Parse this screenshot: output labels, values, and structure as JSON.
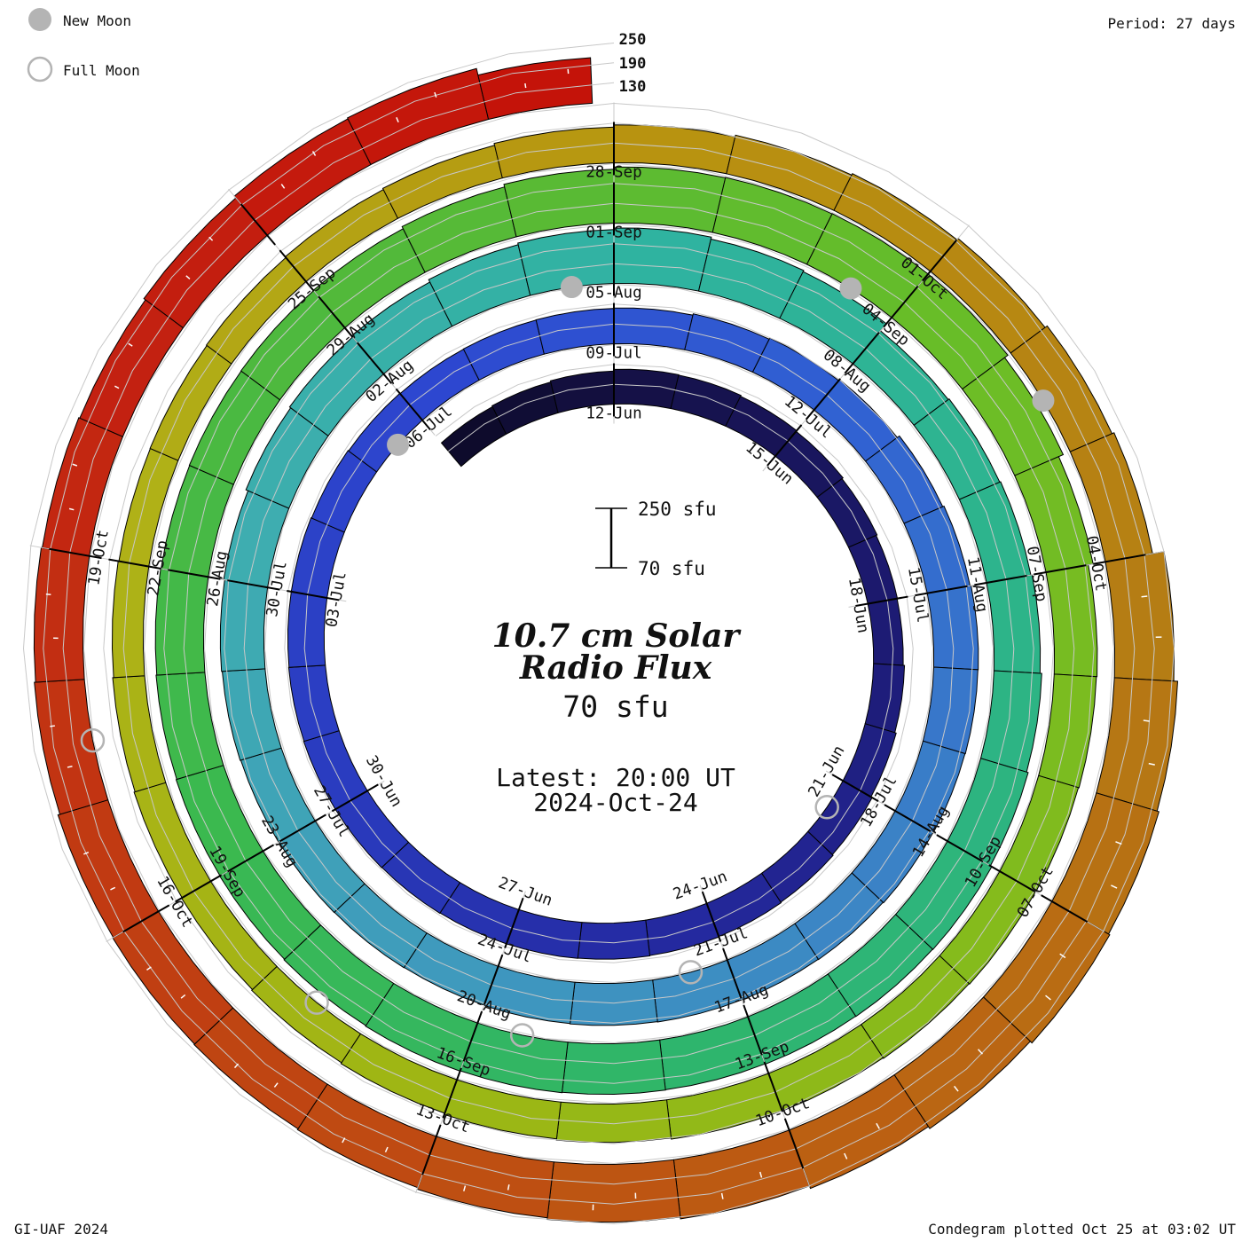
{
  "legend": {
    "new_moon": "New Moon",
    "full_moon": "Full Moon"
  },
  "annotations": {
    "period": "Period: 27 days",
    "credit": "GI-UAF 2024",
    "plotted": "Condegram plotted Oct 25 at 03:02 UT",
    "radial_ticks": [
      "250",
      "190",
      "130"
    ]
  },
  "scalebar": {
    "top": "250 sfu",
    "bottom": "70 sfu"
  },
  "center": {
    "title_line1": "10.7 cm Solar",
    "title_line2": "Radio Flux",
    "baseline_flux": "70 sfu",
    "latest_line1": "Latest: 20:00 UT",
    "latest_line2": "2024-Oct-24"
  },
  "colors": {
    "accent_red_text": "#ee3b3b",
    "moon_gray": "#b4b4b4",
    "grid_gray": "#c8c8c8",
    "tick_black": "#000000",
    "background": "#ffffff"
  },
  "chart_data": {
    "type": "bar",
    "subtype": "spiral condegram (daily radial bars, clockwise, 27 days per revolution)",
    "title": "10.7 cm Solar Radio Flux",
    "period_days": 27,
    "start_date": "2024-06-09",
    "end_date": "2024-10-24",
    "latest_measurement": "20:00 UT 2024-Oct-24",
    "radial_axis": {
      "baseline_sfu": 70,
      "gridlines_sfu": [
        130,
        190,
        250
      ],
      "units": "sfu"
    },
    "revolution_start_labels": [
      "12-Jun",
      "09-Jul",
      "05-Aug",
      "01-Sep",
      "28-Sep"
    ],
    "date_labels": [
      "12-Jun",
      "15-Jun",
      "18-Jun",
      "21-Jun",
      "24-Jun",
      "27-Jun",
      "30-Jun",
      "03-Jul",
      "06-Jul",
      "09-Jul",
      "12-Jul",
      "15-Jul",
      "18-Jul",
      "21-Jul",
      "24-Jul",
      "27-Jul",
      "30-Jul",
      "02-Aug",
      "05-Aug",
      "08-Aug",
      "11-Aug",
      "14-Aug",
      "17-Aug",
      "20-Aug",
      "23-Aug",
      "26-Aug",
      "29-Aug",
      "01-Sep",
      "04-Sep",
      "07-Sep",
      "10-Sep",
      "13-Sep",
      "16-Sep",
      "19-Sep",
      "22-Sep",
      "25-Sep",
      "28-Sep",
      "01-Oct",
      "04-Oct",
      "07-Oct",
      "10-Oct",
      "13-Oct",
      "16-Oct",
      "19-Oct"
    ],
    "moons": {
      "new": [
        "2024-07-05",
        "2024-08-04",
        "2024-09-03",
        "2024-10-02"
      ],
      "full": [
        "2024-06-21",
        "2024-07-21",
        "2024-08-19",
        "2024-09-17",
        "2024-10-17"
      ]
    },
    "colormap_stops": [
      {
        "day": 0,
        "color": "#0e0b2c"
      },
      {
        "day": 3,
        "color": "#151147"
      },
      {
        "day": 9,
        "color": "#1d1b74"
      },
      {
        "day": 15,
        "color": "#24299f"
      },
      {
        "day": 21,
        "color": "#2a3cc0"
      },
      {
        "day": 27,
        "color": "#2d47d0"
      },
      {
        "day": 33,
        "color": "#3162d2"
      },
      {
        "day": 39,
        "color": "#3b82c6"
      },
      {
        "day": 45,
        "color": "#3f9abd"
      },
      {
        "day": 51,
        "color": "#3eadb0"
      },
      {
        "day": 57,
        "color": "#2fb3a0"
      },
      {
        "day": 63,
        "color": "#2db489"
      },
      {
        "day": 69,
        "color": "#2eb56d"
      },
      {
        "day": 75,
        "color": "#3bb94f"
      },
      {
        "day": 81,
        "color": "#52b93a"
      },
      {
        "day": 87,
        "color": "#68bd28"
      },
      {
        "day": 93,
        "color": "#85bb1c"
      },
      {
        "day": 99,
        "color": "#9fb614"
      },
      {
        "day": 105,
        "color": "#b0b117"
      },
      {
        "day": 111,
        "color": "#b89310"
      },
      {
        "day": 117,
        "color": "#b57d14"
      },
      {
        "day": 123,
        "color": "#bc5a12"
      },
      {
        "day": 129,
        "color": "#c13a12"
      },
      {
        "day": 133,
        "color": "#c32111"
      },
      {
        "day": 137,
        "color": "#c41309"
      }
    ],
    "flux_daily": {
      "start": "2024-06-09",
      "cadence": "daily",
      "partial_last_day": 0.83,
      "values": [
        163,
        166,
        170,
        175,
        174,
        171,
        168,
        164,
        161,
        160,
        164,
        168,
        172,
        175,
        177,
        178,
        179,
        180,
        180,
        181,
        182,
        182,
        181,
        180,
        180,
        178,
        176,
        175,
        176,
        177,
        178,
        182,
        186,
        190,
        198,
        202,
        205,
        204,
        203,
        202,
        200,
        199,
        198,
        197,
        196,
        195,
        196,
        197,
        198,
        200,
        202,
        205,
        212,
        216,
        220,
        228,
        233,
        238,
        232,
        228,
        200,
        203,
        206,
        210,
        215,
        220,
        225,
        224,
        223,
        222,
        223,
        224,
        225,
        223,
        221,
        220,
        218,
        216,
        215,
        216,
        217,
        218,
        225,
        233,
        240,
        241,
        242,
        242,
        230,
        215,
        200,
        198,
        196,
        195,
        193,
        191,
        190,
        186,
        182,
        178,
        175,
        172,
        170,
        167,
        164,
        162,
        163,
        165,
        168,
        172,
        178,
        185,
        190,
        195,
        200,
        208,
        215,
        250,
        262,
        268,
        272,
        265,
        258,
        250,
        245,
        240,
        235,
        232,
        230,
        228,
        222,
        218,
        215,
        212,
        218,
        225,
        228,
        208
      ]
    }
  }
}
